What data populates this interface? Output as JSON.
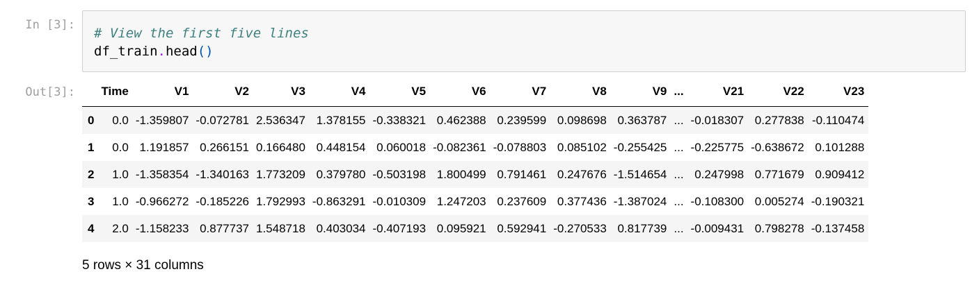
{
  "input_prompt": "In [3]:",
  "output_prompt": "Out[3]:",
  "code": {
    "comment": "# View the first five lines",
    "line2_obj": "df_train",
    "line2_dot": ".",
    "line2_method": "head",
    "line2_parens": "()"
  },
  "table": {
    "columns": [
      "",
      "Time",
      "V1",
      "V2",
      "V3",
      "V4",
      "V5",
      "V6",
      "V7",
      "V8",
      "V9",
      "...",
      "V21",
      "V22",
      "V23"
    ],
    "rows": [
      [
        "0",
        "0.0",
        "-1.359807",
        "-0.072781",
        "2.536347",
        "1.378155",
        "-0.338321",
        "0.462388",
        "0.239599",
        "0.098698",
        "0.363787",
        "...",
        "-0.018307",
        "0.277838",
        "-0.110474"
      ],
      [
        "1",
        "0.0",
        "1.191857",
        "0.266151",
        "0.166480",
        "0.448154",
        "0.060018",
        "-0.082361",
        "-0.078803",
        "0.085102",
        "-0.255425",
        "...",
        "-0.225775",
        "-0.638672",
        "0.101288"
      ],
      [
        "2",
        "1.0",
        "-1.358354",
        "-1.340163",
        "1.773209",
        "0.379780",
        "-0.503198",
        "1.800499",
        "0.791461",
        "0.247676",
        "-1.514654",
        "...",
        "0.247998",
        "0.771679",
        "0.909412"
      ],
      [
        "3",
        "1.0",
        "-0.966272",
        "-0.185226",
        "1.792993",
        "-0.863291",
        "-0.010309",
        "1.247203",
        "0.237609",
        "0.377436",
        "-1.387024",
        "...",
        "-0.108300",
        "0.005274",
        "-0.190321"
      ],
      [
        "4",
        "2.0",
        "-1.158233",
        "0.877737",
        "1.548718",
        "0.403034",
        "-0.407193",
        "0.095921",
        "0.592941",
        "-0.270533",
        "0.817739",
        "...",
        "-0.009431",
        "0.798278",
        "-0.137458"
      ]
    ]
  },
  "footer_text": "5 rows × 31 columns"
}
